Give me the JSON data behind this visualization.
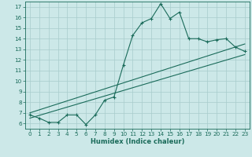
{
  "title": "",
  "xlabel": "Humidex (Indice chaleur)",
  "ylabel": "",
  "bg_color": "#cce8e8",
  "grid_color": "#a8cccc",
  "line_color": "#1a6b5a",
  "xlim": [
    -0.5,
    23.5
  ],
  "ylim": [
    5.5,
    17.5
  ],
  "xticks": [
    0,
    1,
    2,
    3,
    4,
    5,
    6,
    7,
    8,
    9,
    10,
    11,
    12,
    13,
    14,
    15,
    16,
    17,
    18,
    19,
    20,
    21,
    22,
    23
  ],
  "yticks": [
    6,
    7,
    8,
    9,
    10,
    11,
    12,
    13,
    14,
    15,
    16,
    17
  ],
  "series1_x": [
    0,
    1,
    2,
    3,
    4,
    5,
    6,
    7,
    8,
    9,
    10,
    11,
    12,
    13,
    14,
    15,
    16,
    17,
    18,
    19,
    20,
    21,
    22,
    23
  ],
  "series1_y": [
    6.8,
    6.5,
    6.1,
    6.1,
    6.8,
    6.8,
    5.9,
    6.8,
    8.2,
    8.5,
    11.5,
    14.3,
    15.5,
    15.9,
    17.3,
    15.9,
    16.5,
    14.0,
    14.0,
    13.7,
    13.9,
    14.0,
    13.2,
    12.8
  ],
  "series2_x": [
    0,
    23
  ],
  "series2_y": [
    6.5,
    12.5
  ],
  "series3_x": [
    0,
    23
  ],
  "series3_y": [
    7.0,
    13.5
  ],
  "tick_fontsize": 5.2,
  "xlabel_fontsize": 6.0
}
